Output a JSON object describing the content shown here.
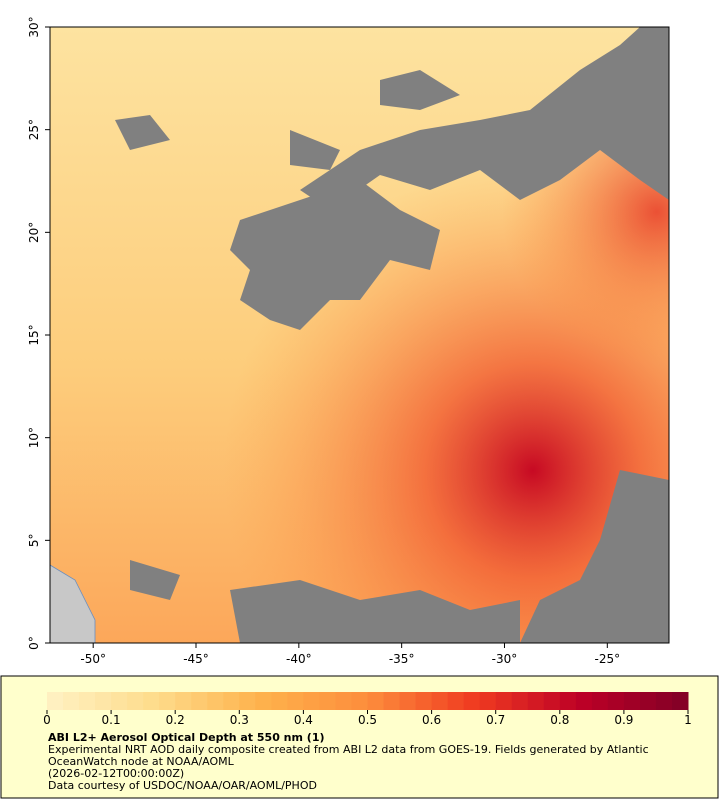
{
  "map": {
    "xlim": [
      -52.1,
      -22
    ],
    "ylim": [
      0,
      30
    ],
    "lon_ticks": [
      {
        "value": -50,
        "label": "-50°"
      },
      {
        "value": -45,
        "label": "-45°"
      },
      {
        "value": -40,
        "label": "-40°"
      },
      {
        "value": -35,
        "label": "-35°"
      },
      {
        "value": -30,
        "label": "-30°"
      },
      {
        "value": -25,
        "label": "-25°"
      }
    ],
    "lat_ticks": [
      {
        "value": 0,
        "label": "0°"
      },
      {
        "value": 5,
        "label": "5°"
      },
      {
        "value": 10,
        "label": "10°"
      },
      {
        "value": 15,
        "label": "15°"
      },
      {
        "value": 20,
        "label": "20°"
      },
      {
        "value": 25,
        "label": "25°"
      },
      {
        "value": 30,
        "label": "30°"
      }
    ]
  },
  "colorbar": {
    "lim": [
      0,
      1
    ],
    "ticks": [
      0,
      0.1,
      0.2,
      0.3,
      0.4,
      0.5,
      0.6,
      0.7,
      0.8,
      0.9,
      1
    ],
    "colormap": [
      "#fff2c4",
      "#fedc8c",
      "#feb24c",
      "#fd8d3c",
      "#f03b20",
      "#bd0026",
      "#800026"
    ]
  },
  "caption": {
    "title": "ABI L2+ Aerosol Optical Depth at 550 nm (1)",
    "description": "Experimental NRT AOD daily composite created from ABI L2 data from GOES-19. Fields generated by Atlantic OceanWatch node at NOAA/AOML",
    "timestamp": "(2026-02-12T00:00:00Z)",
    "credit": "Data courtesy of USDOC/NOAA/OAR/AOML/PHOD"
  }
}
